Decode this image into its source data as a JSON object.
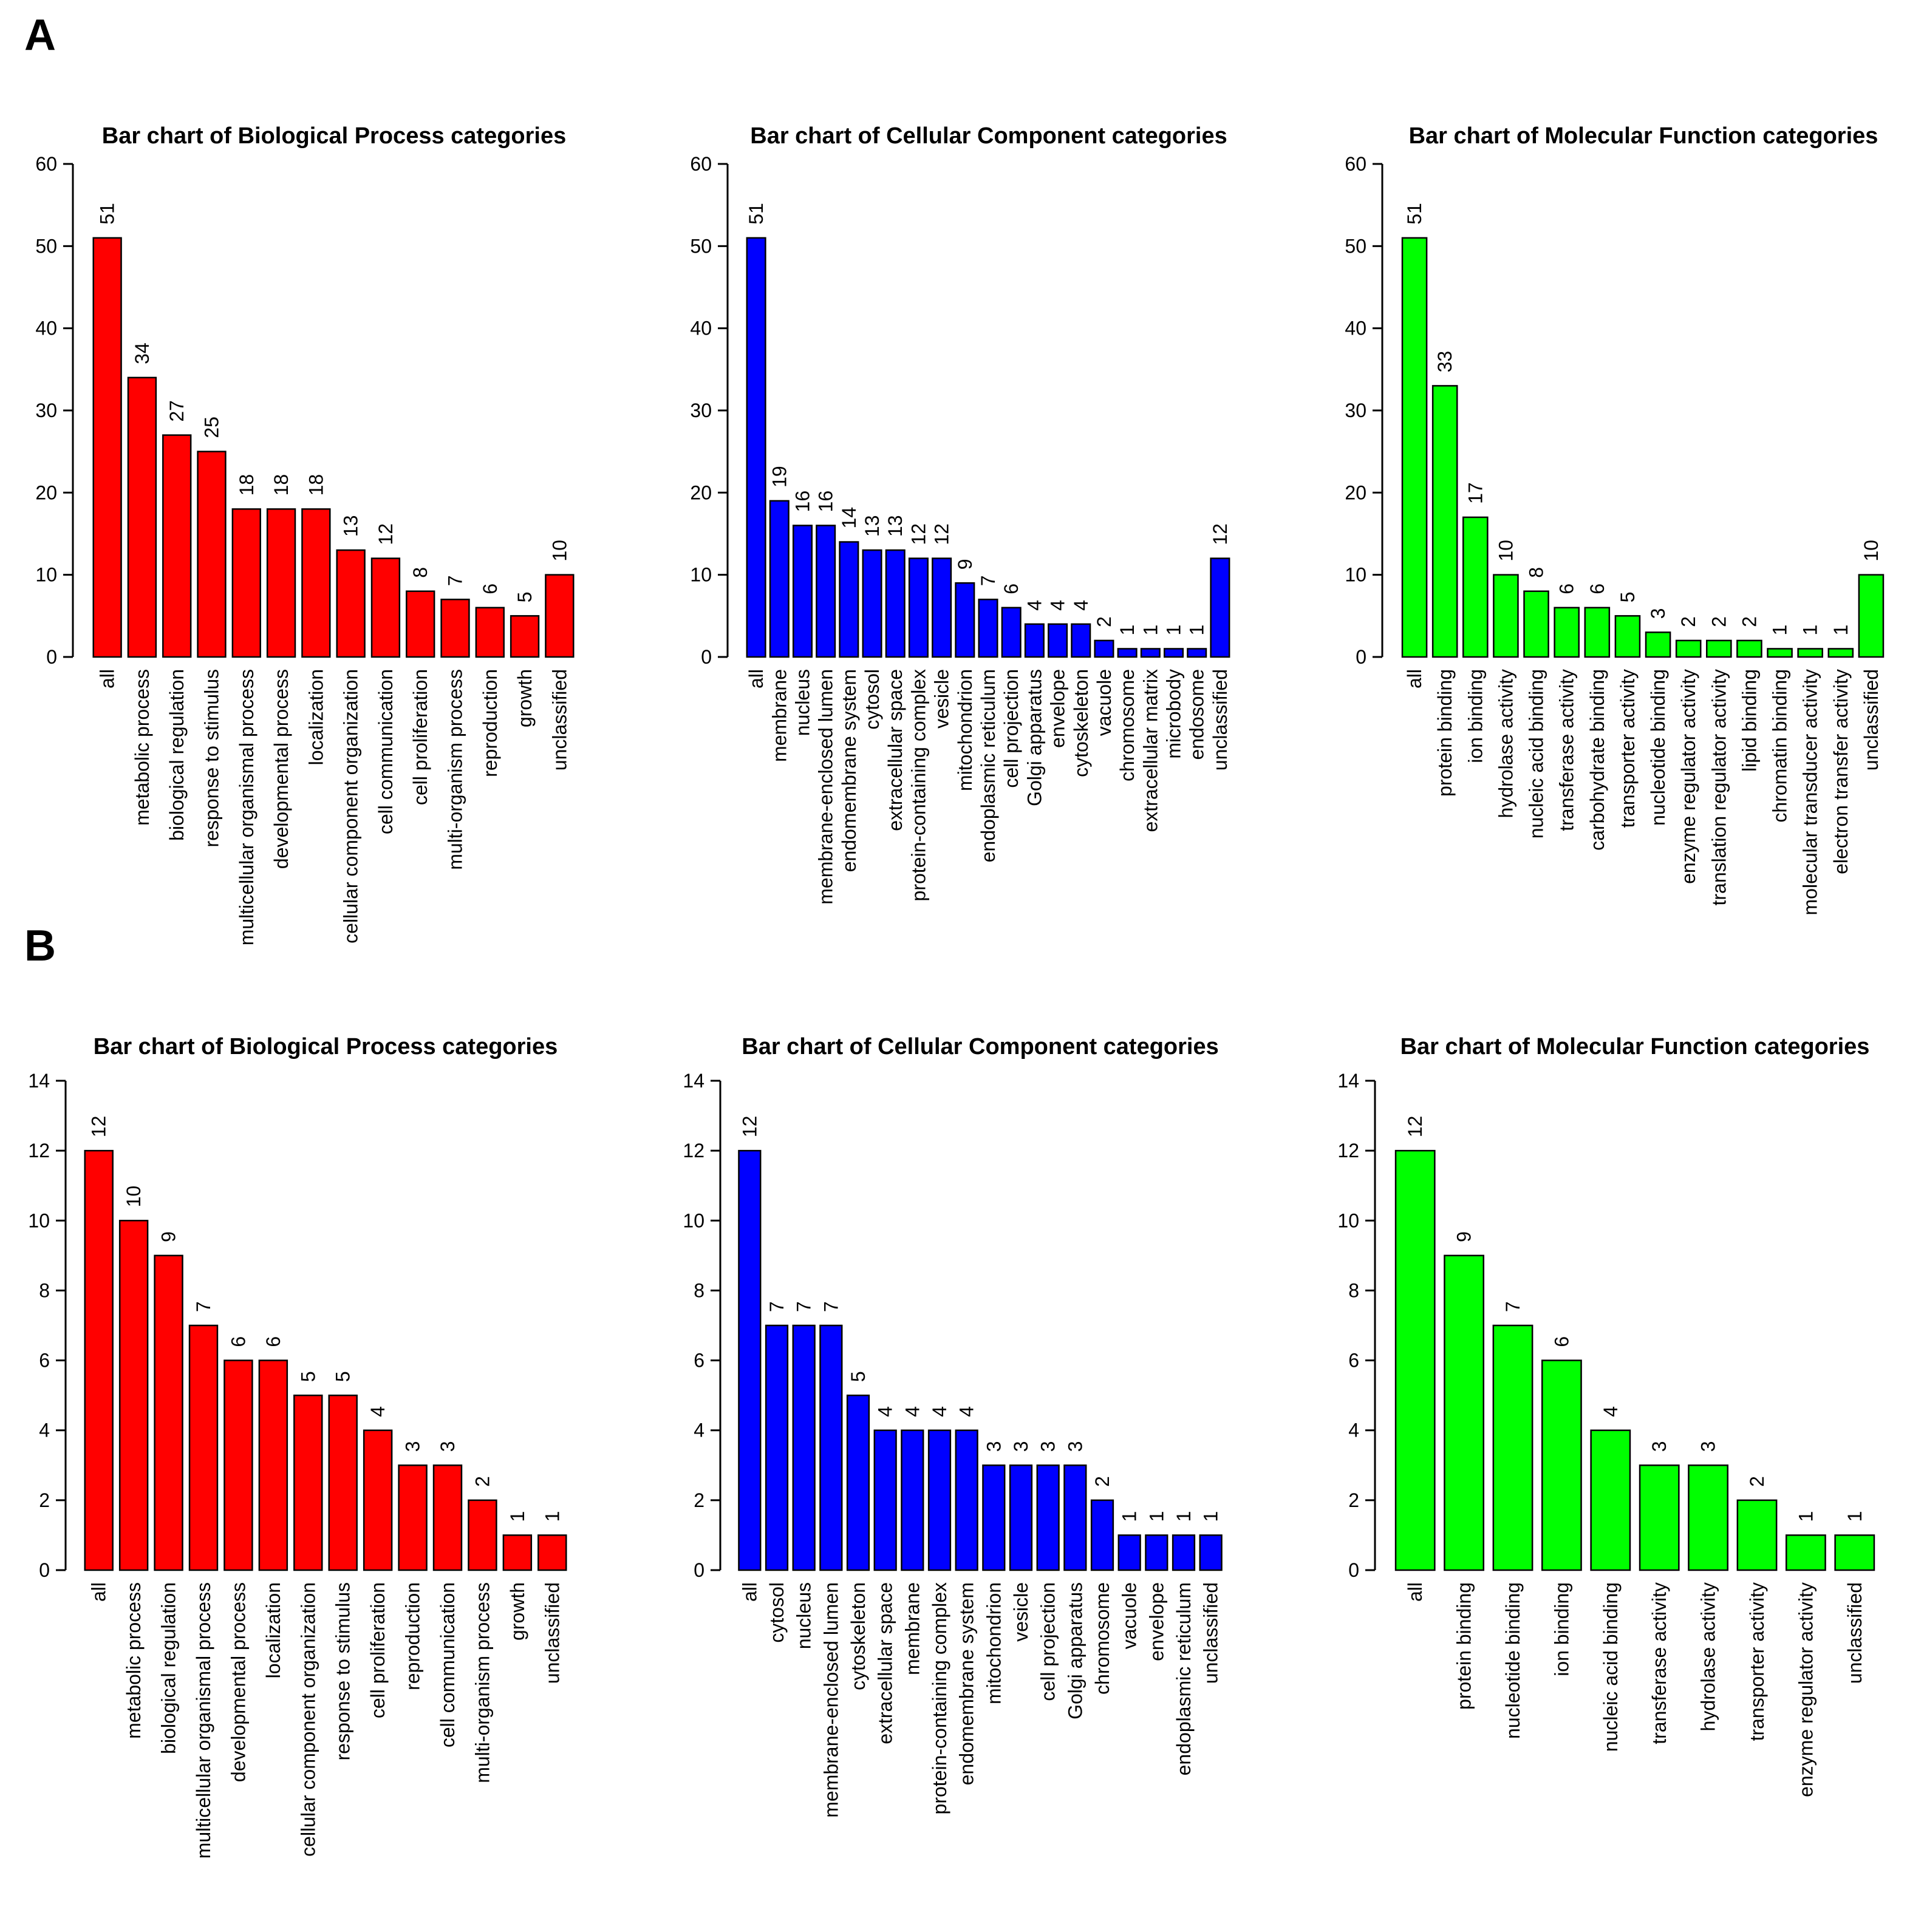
{
  "panels": [
    {
      "letter": "A"
    },
    {
      "letter": "B"
    }
  ],
  "chart_data": [
    {
      "type": "bar",
      "panel": "A",
      "title": "Bar chart of Biological Process categories",
      "color": "#ff0000",
      "ylim": [
        0,
        60
      ],
      "yticks": [
        "0",
        "10",
        "20",
        "30",
        "40",
        "50",
        "60"
      ],
      "categories": [
        "all",
        "metabolic process",
        "biological regulation",
        "response to stimulus",
        "multicellular organismal process",
        "developmental process",
        "localization",
        "cellular component organization",
        "cell communication",
        "cell proliferation",
        "multi-organism process",
        "reproduction",
        "growth",
        "unclassified"
      ],
      "values": [
        51,
        34,
        27,
        25,
        18,
        18,
        18,
        13,
        12,
        8,
        7,
        6,
        5,
        10
      ]
    },
    {
      "type": "bar",
      "panel": "A",
      "title": "Bar chart of Cellular Component categories",
      "color": "#0000ff",
      "ylim": [
        0,
        60
      ],
      "yticks": [
        "0",
        "10",
        "20",
        "30",
        "40",
        "50",
        "60"
      ],
      "categories": [
        "all",
        "membrane",
        "nucleus",
        "membrane-enclosed lumen",
        "endomembrane system",
        "cytosol",
        "extracellular space",
        "protein-containing complex",
        "vesicle",
        "mitochondrion",
        "endoplasmic reticulum",
        "cell projection",
        "Golgi apparatus",
        "envelope",
        "cytoskeleton",
        "vacuole",
        "chromosome",
        "extracellular matrix",
        "microbody",
        "endosome",
        "unclassified"
      ],
      "values": [
        51,
        19,
        16,
        16,
        14,
        13,
        13,
        12,
        12,
        9,
        7,
        6,
        4,
        4,
        4,
        2,
        1,
        1,
        1,
        1,
        12
      ]
    },
    {
      "type": "bar",
      "panel": "A",
      "title": "Bar chart of Molecular Function categories",
      "color": "#00ff00",
      "ylim": [
        0,
        60
      ],
      "yticks": [
        "0",
        "10",
        "20",
        "30",
        "40",
        "50",
        "60"
      ],
      "categories": [
        "all",
        "protein binding",
        "ion binding",
        "hydrolase activity",
        "nucleic acid binding",
        "transferase activity",
        "carbohydrate binding",
        "transporter activity",
        "nucleotide binding",
        "enzyme regulator activity",
        "translation regulator activity",
        "lipid binding",
        "chromatin binding",
        "molecular transducer activity",
        "electron transfer activity",
        "unclassified"
      ],
      "values": [
        51,
        33,
        17,
        10,
        8,
        6,
        6,
        5,
        3,
        2,
        2,
        2,
        1,
        1,
        1,
        10
      ]
    },
    {
      "type": "bar",
      "panel": "B",
      "title": "Bar chart of Biological Process categories",
      "color": "#ff0000",
      "ylim": [
        0,
        14
      ],
      "yticks": [
        "0",
        "2",
        "4",
        "6",
        "8",
        "10",
        "12",
        "14"
      ],
      "categories": [
        "all",
        "metabolic process",
        "biological regulation",
        "multicellular organismal process",
        "developmental process",
        "localization",
        "cellular component organization",
        "response to stimulus",
        "cell proliferation",
        "reproduction",
        "cell communication",
        "multi-organism process",
        "growth",
        "unclassified"
      ],
      "values": [
        12,
        10,
        9,
        7,
        6,
        6,
        5,
        5,
        4,
        3,
        3,
        2,
        1,
        1
      ]
    },
    {
      "type": "bar",
      "panel": "B",
      "title": "Bar chart of Cellular Component categories",
      "color": "#0000ff",
      "ylim": [
        0,
        14
      ],
      "yticks": [
        "0",
        "2",
        "4",
        "6",
        "8",
        "10",
        "12",
        "14"
      ],
      "categories": [
        "all",
        "cytosol",
        "nucleus",
        "membrane-enclosed lumen",
        "cytoskeleton",
        "extracellular space",
        "membrane",
        "protein-containing complex",
        "endomembrane system",
        "mitochondrion",
        "vesicle",
        "cell projection",
        "Golgi apparatus",
        "chromosome",
        "vacuole",
        "envelope",
        "endoplasmic reticulum",
        "unclassified"
      ],
      "values": [
        12,
        7,
        7,
        7,
        5,
        4,
        4,
        4,
        4,
        3,
        3,
        3,
        3,
        2,
        1,
        1,
        1,
        1
      ]
    },
    {
      "type": "bar",
      "panel": "B",
      "title": "Bar chart of Molecular Function categories",
      "color": "#00ff00",
      "ylim": [
        0,
        14
      ],
      "yticks": [
        "0",
        "2",
        "4",
        "6",
        "8",
        "10",
        "12",
        "14"
      ],
      "categories": [
        "all",
        "protein binding",
        "nucleotide binding",
        "ion binding",
        "nucleic acid binding",
        "transferase activity",
        "hydrolase activity",
        "transporter activity",
        "enzyme regulator activity",
        "unclassified"
      ],
      "values": [
        12,
        9,
        7,
        6,
        4,
        3,
        3,
        2,
        1,
        1
      ]
    }
  ]
}
